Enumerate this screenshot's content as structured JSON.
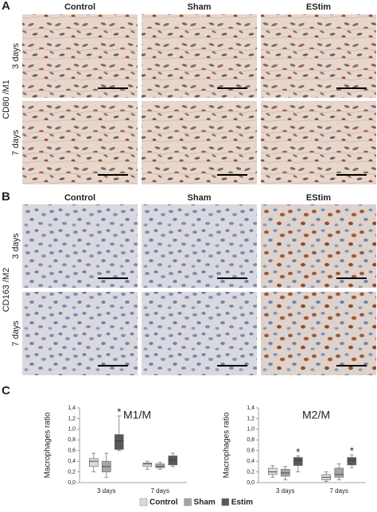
{
  "panel_a": {
    "label": "A",
    "columns": [
      "Control",
      "Sham",
      "EStim"
    ],
    "rows": [
      "3 days",
      "7 days"
    ],
    "marker": "CD80 /M1"
  },
  "panel_b": {
    "label": "B",
    "columns": [
      "Control",
      "Sham",
      "EStim"
    ],
    "rows": [
      "3 days",
      "7 days"
    ],
    "marker": "CD163 /M2"
  },
  "panel_c": {
    "label": "C"
  },
  "chart_data": [
    {
      "type": "box",
      "title": "M1/M",
      "y_label": "Macrophages ratio",
      "categories": [
        "3 days",
        "7 days"
      ],
      "series": [
        {
          "name": "Control",
          "color": "#d9d9d9",
          "min": [
            0.2,
            0.25
          ],
          "q1": [
            0.3,
            0.3
          ],
          "median": [
            0.4,
            0.35
          ],
          "q3": [
            0.45,
            0.37
          ],
          "max": [
            0.55,
            0.4
          ]
        },
        {
          "name": "Sham",
          "color": "#a6a6a6",
          "min": [
            0.1,
            0.25
          ],
          "q1": [
            0.2,
            0.28
          ],
          "median": [
            0.3,
            0.3
          ],
          "q3": [
            0.4,
            0.35
          ],
          "max": [
            0.55,
            0.38
          ]
        },
        {
          "name": "Estim",
          "color": "#595959",
          "min": [
            0.6,
            0.3
          ],
          "q1": [
            0.62,
            0.33
          ],
          "median": [
            0.78,
            0.42
          ],
          "q3": [
            0.9,
            0.5
          ],
          "max": [
            1.25,
            0.55
          ]
        }
      ],
      "ylim": [
        0,
        1.4
      ],
      "yticks": [
        {
          "value": 0,
          "label": "0,0"
        },
        {
          "value": 0.2,
          "label": "0,2"
        },
        {
          "value": 0.4,
          "label": "0,4"
        },
        {
          "value": 0.6,
          "label": "0,6"
        },
        {
          "value": 0.8,
          "label": "0,8"
        },
        {
          "value": 1.0,
          "label": "1,0"
        },
        {
          "value": 1.2,
          "label": "1,2"
        },
        {
          "value": 1.4,
          "label": "1,4"
        }
      ],
      "annotations": [
        {
          "text": "*",
          "category": "3 days",
          "series": "Estim"
        }
      ]
    },
    {
      "type": "box",
      "title": "M2/M",
      "y_label": "Macrophages ratio",
      "categories": [
        "3 days",
        "7 days"
      ],
      "series": [
        {
          "color": "#d9d9d9",
          "min": [
            0.1,
            0.02
          ],
          "q1": [
            0.15,
            0.05
          ],
          "median": [
            0.2,
            0.1
          ],
          "q3": [
            0.27,
            0.15
          ],
          "max": [
            0.32,
            0.2
          ]
        },
        {
          "color": "#a6a6a6",
          "min": [
            0.05,
            0.05
          ],
          "q1": [
            0.12,
            0.1
          ],
          "median": [
            0.18,
            0.15
          ],
          "q3": [
            0.25,
            0.27
          ],
          "max": [
            0.3,
            0.35
          ]
        },
        {
          "color": "#595959",
          "min": [
            0.2,
            0.28
          ],
          "q1": [
            0.32,
            0.33
          ],
          "median": [
            0.42,
            0.42
          ],
          "q3": [
            0.47,
            0.47
          ],
          "max": [
            0.5,
            0.52
          ]
        }
      ],
      "ylim": [
        0,
        1.4
      ],
      "yticks": [
        {
          "value": 0,
          "label": "0,0"
        },
        {
          "value": 0.2,
          "label": "0,2"
        },
        {
          "value": 0.4,
          "label": "0,4"
        },
        {
          "value": 0.6,
          "label": "0,6"
        },
        {
          "value": 0.8,
          "label": "0,8"
        },
        {
          "value": 1.0,
          "label": "1,0"
        },
        {
          "value": 1.2,
          "label": "1,2"
        },
        {
          "value": 1.4,
          "label": "1,4"
        }
      ],
      "annotations": [
        {
          "text": "*",
          "category": "3 days",
          "series": 2
        },
        {
          "text": "*",
          "category": "7 days",
          "series": 2
        }
      ]
    }
  ]
}
